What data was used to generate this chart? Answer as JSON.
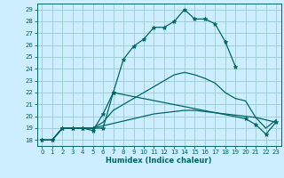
{
  "title": "",
  "xlabel": "Humidex (Indice chaleur)",
  "bg_color": "#cceeff",
  "grid_color": "#99cccc",
  "line_color": "#006666",
  "xlim": [
    -0.5,
    23.5
  ],
  "ylim": [
    17.5,
    29.5
  ],
  "yticks": [
    18,
    19,
    20,
    21,
    22,
    23,
    24,
    25,
    26,
    27,
    28,
    29
  ],
  "xticks": [
    0,
    1,
    2,
    3,
    4,
    5,
    6,
    7,
    8,
    9,
    10,
    11,
    12,
    13,
    14,
    15,
    16,
    17,
    18,
    19,
    20,
    21,
    22,
    23
  ],
  "series": [
    {
      "x": [
        0,
        1,
        2,
        3,
        4,
        5,
        6,
        7,
        8,
        9,
        10,
        11,
        12,
        13,
        14,
        15,
        16,
        17,
        18,
        19
      ],
      "y": [
        18,
        18,
        19,
        19,
        19,
        19,
        19,
        22,
        24.8,
        25.9,
        26.5,
        27.5,
        27.5,
        28.0,
        29.0,
        28.2,
        28.2,
        27.8,
        26.3,
        24.2
      ],
      "marker": "*",
      "markersize": 3.5,
      "linewidth": 0.9
    },
    {
      "x": [
        0,
        1,
        2,
        3,
        4,
        5,
        6,
        7,
        20,
        21,
        22,
        23
      ],
      "y": [
        18,
        18,
        19,
        19,
        19,
        18.8,
        20.2,
        22,
        19.8,
        19.3,
        18.5,
        19.5
      ],
      "marker": "*",
      "markersize": 3.5,
      "linewidth": 0.9
    },
    {
      "x": [
        0,
        1,
        2,
        3,
        4,
        5,
        6,
        7,
        8,
        9,
        10,
        11,
        12,
        13,
        14,
        15,
        16,
        17,
        18,
        19,
        20,
        21,
        22,
        23
      ],
      "y": [
        18,
        18,
        19,
        19,
        19,
        19,
        19.5,
        20.5,
        21.0,
        21.5,
        22.0,
        22.5,
        23.0,
        23.5,
        23.7,
        23.5,
        23.2,
        22.8,
        22.0,
        21.5,
        21.3,
        19.9,
        19.0,
        19.7
      ],
      "marker": null,
      "markersize": 0,
      "linewidth": 0.9
    },
    {
      "x": [
        0,
        1,
        2,
        3,
        4,
        5,
        6,
        7,
        8,
        9,
        10,
        11,
        12,
        13,
        14,
        15,
        16,
        17,
        18,
        19,
        20,
        21,
        22,
        23
      ],
      "y": [
        18,
        18,
        19,
        19,
        19,
        19,
        19.2,
        19.4,
        19.6,
        19.8,
        20.0,
        20.2,
        20.3,
        20.4,
        20.5,
        20.5,
        20.4,
        20.3,
        20.2,
        20.1,
        20.0,
        19.9,
        19.7,
        19.5
      ],
      "marker": null,
      "markersize": 0,
      "linewidth": 0.9
    }
  ]
}
